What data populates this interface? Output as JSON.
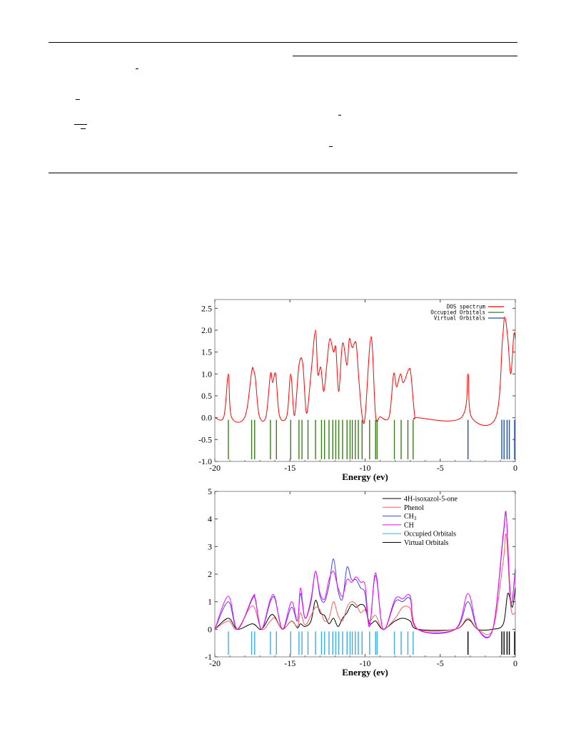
{
  "page": {
    "background": "#ffffff"
  },
  "colors": {
    "dos": "#ff0000",
    "occupied_top": "#3a7d1a",
    "virtual_top": "#1a4fb0",
    "isoxazol": "#000000",
    "phenol": "#ff5a5a",
    "ch3": "#4040ff",
    "ch": "#ff00ff",
    "occupied_bottom": "#3aaee8",
    "virtual_bottom": "#000000"
  },
  "chart_data": [
    {
      "type": "line",
      "xlabel": "Energy (ev)",
      "ylabel": "",
      "xlim": [
        -20,
        0
      ],
      "ylim": [
        -1.0,
        2.7
      ],
      "xticks": [
        -20,
        -15,
        -10,
        -5,
        0
      ],
      "yticks": [
        "2.5",
        "2.0",
        "1.5",
        "1.0",
        "0.5",
        "0.0",
        "-0.5",
        "-1.0"
      ],
      "legend_position": "top-right",
      "legend": [
        "DOS spectrum",
        "Occupied Orbitals",
        "Virtual Orbitals"
      ],
      "series": [
        {
          "name": "DOS spectrum",
          "x": [
            -20.0,
            -19.4,
            -19.1,
            -18.9,
            -18.0,
            -17.55,
            -17.45,
            -17.3,
            -17.05,
            -16.6,
            -16.3,
            -16.15,
            -15.95,
            -15.7,
            -15.2,
            -14.95,
            -14.7,
            -14.4,
            -14.15,
            -13.9,
            -13.6,
            -13.3,
            -13.15,
            -12.95,
            -12.75,
            -12.55,
            -12.35,
            -12.1,
            -11.95,
            -11.75,
            -11.5,
            -11.2,
            -11.05,
            -10.85,
            -10.6,
            -10.4,
            -10.2,
            -10.0,
            -9.6,
            -9.3,
            -9.0,
            -8.4,
            -8.1,
            -7.9,
            -7.65,
            -7.45,
            -7.1,
            -6.95,
            -6.7,
            -6.5,
            -3.6,
            -3.15,
            -2.9,
            -1.3,
            -0.85,
            -0.7,
            -0.5,
            -0.3,
            -0.1,
            0.0
          ],
          "y": [
            0.0,
            0.02,
            1.0,
            0.02,
            0.02,
            1.05,
            1.1,
            0.9,
            0.05,
            0.02,
            1.0,
            0.8,
            1.0,
            0.05,
            0.05,
            1.0,
            0.05,
            1.2,
            1.25,
            0.1,
            1.0,
            2.0,
            1.0,
            1.15,
            0.6,
            1.2,
            1.8,
            1.5,
            1.6,
            0.6,
            1.7,
            1.2,
            1.8,
            1.6,
            1.7,
            0.8,
            0.05,
            0.02,
            1.85,
            0.05,
            0.02,
            0.02,
            1.0,
            0.7,
            1.0,
            0.8,
            1.1,
            1.0,
            0.05,
            0.0,
            0.0,
            1.0,
            0.0,
            0.0,
            1.8,
            2.3,
            1.8,
            1.0,
            1.9,
            1.8
          ]
        }
      ],
      "occupied_orbitals": [
        -19.1,
        -17.55,
        -17.35,
        -16.3,
        -15.9,
        -14.95,
        -14.4,
        -14.2,
        -13.8,
        -13.3,
        -12.9,
        -12.7,
        -12.4,
        -12.15,
        -11.95,
        -11.75,
        -11.5,
        -11.2,
        -11.0,
        -10.85,
        -10.65,
        -10.45,
        -10.2,
        -9.7,
        -9.3,
        -9.2,
        -8.05,
        -7.6,
        -7.15,
        -6.8
      ],
      "virtual_orbitals": [
        -3.15,
        -0.9,
        -0.75,
        -0.55,
        -0.4,
        -0.05
      ],
      "orbital_marker_range": [
        -1.0,
        0.0
      ]
    },
    {
      "type": "line",
      "xlabel": "Energy (ev)",
      "ylabel": "",
      "xlim": [
        -20,
        0
      ],
      "ylim": [
        -1,
        5
      ],
      "xticks": [
        -20,
        -15,
        -10,
        -5,
        0
      ],
      "yticks": [
        "5",
        "4",
        "3",
        "2",
        "1",
        "0",
        "-1"
      ],
      "legend_position": "top-right",
      "legend": [
        "4H-isoxazol-5-one",
        "Phenol",
        "CH3",
        "CH",
        "Occupied Orbitals",
        "Virtual Orbitals"
      ],
      "series": [
        {
          "name": "4H-isoxazol-5-one",
          "x": [
            -20,
            -19.1,
            -18.5,
            -17.5,
            -16.9,
            -16.3,
            -16.0,
            -15.5,
            -14.9,
            -14.5,
            -14.3,
            -14.0,
            -13.6,
            -13.3,
            -13.0,
            -12.7,
            -12.4,
            -12.1,
            -11.8,
            -11.5,
            -11.2,
            -10.9,
            -10.6,
            -10.3,
            -10.0,
            -9.7,
            -9.3,
            -8.8,
            -8.0,
            -7.5,
            -7.0,
            -6.5,
            -4.0,
            -3.15,
            -2.5,
            -1.5,
            -0.8,
            -0.5,
            -0.2,
            0.0
          ],
          "y": [
            0.0,
            0.4,
            0.0,
            0.2,
            0.0,
            0.5,
            0.45,
            0.0,
            0.3,
            0.05,
            0.2,
            0.1,
            0.3,
            1.05,
            0.6,
            0.5,
            0.2,
            0.4,
            0.1,
            0.4,
            0.6,
            0.9,
            0.8,
            0.9,
            0.8,
            0.2,
            0.3,
            0.0,
            0.3,
            0.4,
            0.3,
            0.0,
            0.0,
            0.35,
            0.0,
            0.0,
            0.2,
            1.3,
            0.8,
            1.5
          ]
        },
        {
          "name": "Phenol",
          "x": [
            -20,
            -19.1,
            -18.5,
            -17.5,
            -16.9,
            -16.3,
            -16.0,
            -15.5,
            -14.9,
            -14.5,
            -14.3,
            -14.0,
            -13.6,
            -13.3,
            -13.0,
            -12.7,
            -12.4,
            -12.1,
            -11.8,
            -11.5,
            -11.2,
            -10.9,
            -10.6,
            -10.3,
            -10.0,
            -9.7,
            -9.3,
            -8.8,
            -8.0,
            -7.5,
            -7.0,
            -6.5,
            -4.0,
            -3.15,
            -2.5,
            -1.5,
            -0.8,
            -0.6,
            -0.3,
            0.0
          ],
          "y": [
            0.0,
            0.3,
            0.0,
            0.85,
            0.0,
            0.3,
            0.4,
            0.0,
            0.3,
            0.1,
            0.6,
            0.15,
            0.5,
            0.8,
            0.7,
            0.3,
            0.4,
            1.0,
            0.5,
            0.3,
            0.8,
            1.0,
            0.9,
            0.6,
            0.7,
            0.3,
            0.5,
            0.0,
            0.4,
            0.8,
            0.75,
            0.0,
            0.0,
            0.4,
            0.0,
            0.0,
            2.5,
            3.4,
            0.8,
            0.6
          ]
        },
        {
          "name": "CH3",
          "x": [
            -20,
            -19.1,
            -18.5,
            -17.5,
            -17.3,
            -16.9,
            -16.3,
            -16.0,
            -15.5,
            -14.9,
            -14.5,
            -14.3,
            -14.0,
            -13.6,
            -13.3,
            -13.0,
            -12.7,
            -12.4,
            -12.1,
            -11.8,
            -11.5,
            -11.2,
            -10.9,
            -10.6,
            -10.3,
            -10.0,
            -9.7,
            -9.3,
            -8.8,
            -8.0,
            -7.5,
            -7.0,
            -6.5,
            -4.0,
            -3.15,
            -2.5,
            -1.5,
            -0.8,
            -0.6,
            -0.3,
            0.0
          ],
          "y": [
            0.0,
            1.0,
            0.0,
            1.1,
            1.05,
            0.0,
            1.0,
            1.1,
            0.0,
            0.8,
            0.3,
            1.3,
            0.4,
            1.0,
            2.1,
            1.2,
            1.0,
            1.6,
            2.55,
            1.4,
            1.1,
            2.25,
            1.8,
            1.8,
            1.5,
            1.3,
            0.1,
            1.95,
            0.0,
            1.0,
            1.0,
            1.1,
            0.0,
            0.0,
            1.0,
            0.0,
            0.0,
            3.4,
            4.1,
            1.0,
            2.2
          ]
        },
        {
          "name": "CH",
          "x": [
            -20,
            -19.1,
            -18.5,
            -17.5,
            -17.3,
            -16.9,
            -16.3,
            -16.0,
            -15.5,
            -14.9,
            -14.5,
            -14.3,
            -14.0,
            -13.6,
            -13.3,
            -13.0,
            -12.7,
            -12.4,
            -12.1,
            -11.8,
            -11.5,
            -11.2,
            -10.9,
            -10.6,
            -10.3,
            -10.0,
            -9.7,
            -9.3,
            -8.8,
            -8.0,
            -7.5,
            -7.0,
            -6.5,
            -4.0,
            -3.15,
            -2.5,
            -1.5,
            -0.8,
            -0.6,
            -0.3,
            0.0
          ],
          "y": [
            0.0,
            1.2,
            0.0,
            1.15,
            1.1,
            0.0,
            1.1,
            1.15,
            0.0,
            1.0,
            0.3,
            1.5,
            0.4,
            1.1,
            2.1,
            1.3,
            1.1,
            1.8,
            2.1,
            1.5,
            1.2,
            1.8,
            1.7,
            1.9,
            1.7,
            1.6,
            0.1,
            2.05,
            0.0,
            1.1,
            1.1,
            1.2,
            0.0,
            0.0,
            1.3,
            0.0,
            0.0,
            3.5,
            4.1,
            1.0,
            2.1
          ]
        }
      ],
      "occupied_orbitals": [
        -19.1,
        -17.55,
        -17.35,
        -16.3,
        -15.9,
        -14.95,
        -14.4,
        -14.2,
        -13.8,
        -13.3,
        -12.9,
        -12.7,
        -12.4,
        -12.15,
        -11.95,
        -11.75,
        -11.5,
        -11.2,
        -11.0,
        -10.85,
        -10.65,
        -10.45,
        -10.2,
        -9.7,
        -9.3,
        -9.2,
        -8.05,
        -7.6,
        -7.15,
        -6.8
      ],
      "virtual_orbitals": [
        -3.15,
        -0.9,
        -0.75,
        -0.55,
        -0.4,
        -0.05
      ],
      "orbital_marker_range": [
        -1,
        0
      ]
    }
  ],
  "text": {
    "ch3_label": "CH",
    "ch3_sub": "3"
  }
}
